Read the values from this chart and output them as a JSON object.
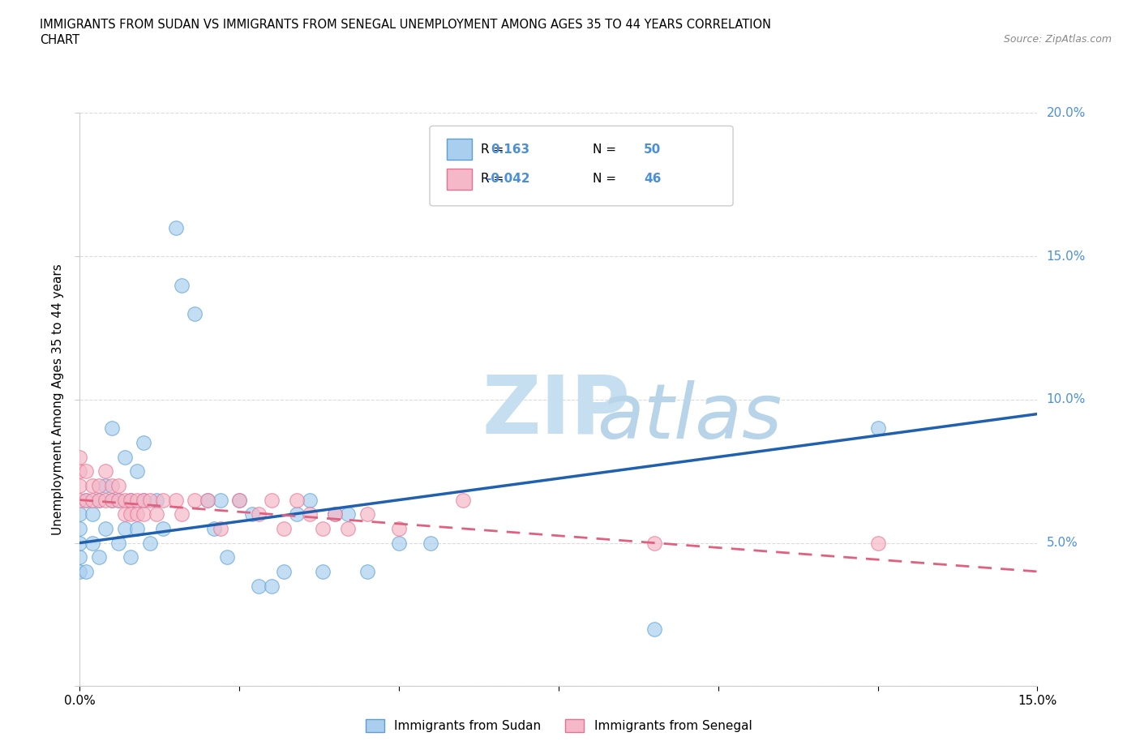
{
  "title_line1": "IMMIGRANTS FROM SUDAN VS IMMIGRANTS FROM SENEGAL UNEMPLOYMENT AMONG AGES 35 TO 44 YEARS CORRELATION",
  "title_line2": "CHART",
  "source_text": "Source: ZipAtlas.com",
  "ylabel": "Unemployment Among Ages 35 to 44 years",
  "xlim": [
    0.0,
    0.15
  ],
  "ylim": [
    0.0,
    0.2
  ],
  "xticks": [
    0.0,
    0.025,
    0.05,
    0.075,
    0.1,
    0.125,
    0.15
  ],
  "xticklabels": [
    "0.0%",
    "",
    "",
    "",
    "",
    "",
    "15.0%"
  ],
  "yticks": [
    0.0,
    0.05,
    0.1,
    0.15,
    0.2
  ],
  "yticklabels": [
    "",
    "5.0%",
    "10.0%",
    "15.0%",
    "20.0%"
  ],
  "color_sudan": "#aacfee",
  "color_senegal": "#f5b8c8",
  "color_sudan_edge": "#5a9fd4",
  "color_senegal_edge": "#e87090",
  "color_sudan_line": "#2060b0",
  "color_senegal_line": "#e06080",
  "color_tick_labels": "#4a90d9",
  "watermark_zip_color": "#c5dff0",
  "watermark_atlas_color": "#b8d4e8",
  "sudan_x": [
    0.0,
    0.0,
    0.0,
    0.0,
    0.0,
    0.001,
    0.001,
    0.002,
    0.002,
    0.003,
    0.003,
    0.004,
    0.004,
    0.005,
    0.005,
    0.006,
    0.006,
    0.007,
    0.007,
    0.008,
    0.008,
    0.009,
    0.009,
    0.01,
    0.01,
    0.011,
    0.012,
    0.013,
    0.015,
    0.016,
    0.018,
    0.02,
    0.021,
    0.022,
    0.023,
    0.025,
    0.027,
    0.028,
    0.03,
    0.032,
    0.034,
    0.036,
    0.038,
    0.04,
    0.042,
    0.045,
    0.05,
    0.055,
    0.09,
    0.125
  ],
  "sudan_y": [
    0.04,
    0.045,
    0.05,
    0.055,
    0.06,
    0.065,
    0.04,
    0.05,
    0.06,
    0.065,
    0.045,
    0.07,
    0.055,
    0.065,
    0.09,
    0.05,
    0.065,
    0.055,
    0.08,
    0.045,
    0.065,
    0.075,
    0.055,
    0.065,
    0.085,
    0.05,
    0.065,
    0.055,
    0.16,
    0.14,
    0.13,
    0.065,
    0.055,
    0.065,
    0.045,
    0.065,
    0.06,
    0.035,
    0.035,
    0.04,
    0.06,
    0.065,
    0.04,
    0.06,
    0.06,
    0.04,
    0.05,
    0.05,
    0.02,
    0.09
  ],
  "senegal_x": [
    0.0,
    0.0,
    0.0,
    0.0,
    0.001,
    0.001,
    0.002,
    0.002,
    0.003,
    0.003,
    0.004,
    0.004,
    0.005,
    0.005,
    0.006,
    0.006,
    0.007,
    0.007,
    0.008,
    0.008,
    0.009,
    0.009,
    0.01,
    0.01,
    0.011,
    0.012,
    0.013,
    0.015,
    0.016,
    0.018,
    0.02,
    0.022,
    0.025,
    0.028,
    0.03,
    0.032,
    0.034,
    0.036,
    0.038,
    0.04,
    0.042,
    0.045,
    0.05,
    0.06,
    0.09,
    0.125
  ],
  "senegal_y": [
    0.065,
    0.07,
    0.075,
    0.08,
    0.065,
    0.075,
    0.065,
    0.07,
    0.065,
    0.07,
    0.065,
    0.075,
    0.065,
    0.07,
    0.065,
    0.07,
    0.065,
    0.06,
    0.065,
    0.06,
    0.065,
    0.06,
    0.065,
    0.06,
    0.065,
    0.06,
    0.065,
    0.065,
    0.06,
    0.065,
    0.065,
    0.055,
    0.065,
    0.06,
    0.065,
    0.055,
    0.065,
    0.06,
    0.055,
    0.06,
    0.055,
    0.06,
    0.055,
    0.065,
    0.05,
    0.05
  ],
  "sudan_line_x": [
    0.0,
    0.15
  ],
  "sudan_line_y": [
    0.05,
    0.095
  ],
  "senegal_line_x": [
    0.0,
    0.15
  ],
  "senegal_line_y": [
    0.065,
    0.04
  ]
}
